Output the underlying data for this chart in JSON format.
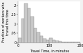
{
  "title": "",
  "xlabel": "Travel Time, in minutes",
  "ylabel": "Fraction of workers who travel this time",
  "bar_edges": [
    0,
    10,
    20,
    30,
    40,
    50,
    60,
    70,
    80,
    90,
    100,
    110,
    120,
    130,
    140,
    150,
    160,
    170,
    180,
    190,
    200
  ],
  "bar_heights": [
    0.025,
    0.13,
    0.21,
    0.185,
    0.14,
    0.075,
    0.055,
    0.035,
    0.022,
    0.015,
    0.025,
    0.012,
    0.008,
    0.005,
    0.003,
    0.003,
    0.002,
    0.002,
    0.001,
    0.001
  ],
  "bar_color": "#c8c8c8",
  "bar_edge_color": "#888888",
  "background_color": "#f2f2f2",
  "plot_bg_color": "#ffffff",
  "xlim": [
    0,
    200
  ],
  "ylim": [
    0,
    0.22
  ],
  "xticks": [
    0,
    100,
    200
  ],
  "yticks": [
    0,
    0.05,
    0.1,
    0.15,
    0.2
  ],
  "ytick_labels": [
    "0",
    ".05",
    ".1",
    ".15",
    ".2"
  ],
  "xtick_labels": [
    "0",
    "100",
    "200"
  ],
  "tick_fontsize": 3.5,
  "label_fontsize": 3.5,
  "linewidth": 0.3
}
